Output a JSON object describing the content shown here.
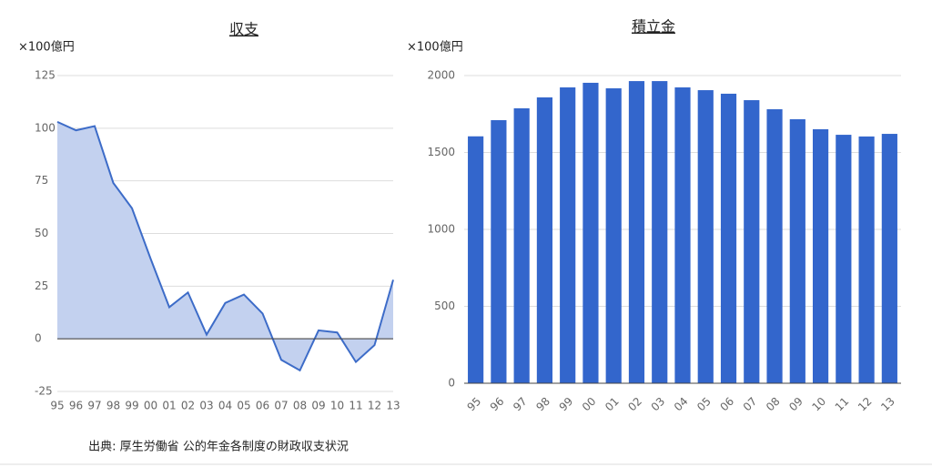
{
  "chart_data": [
    {
      "type": "area",
      "title": "収支",
      "unit_label": "×100億円",
      "categories": [
        "95",
        "96",
        "97",
        "98",
        "99",
        "00",
        "01",
        "02",
        "03",
        "04",
        "05",
        "06",
        "07",
        "08",
        "09",
        "10",
        "11",
        "12",
        "13"
      ],
      "values": [
        103,
        99,
        101,
        74,
        62,
        38,
        15,
        22,
        2,
        17,
        21,
        12,
        -10,
        -15,
        4,
        3,
        -11,
        -3,
        28
      ],
      "color": "#3d6cc8",
      "fill": "#c3d1ef",
      "ylim": [
        -25,
        125
      ],
      "yticks": [
        -25,
        0,
        25,
        50,
        75,
        100,
        125
      ],
      "grid": true
    },
    {
      "type": "bar",
      "title": "積立金",
      "unit_label": "×100億円",
      "categories": [
        "95",
        "96",
        "97",
        "98",
        "99",
        "00",
        "01",
        "02",
        "03",
        "04",
        "05",
        "06",
        "07",
        "08",
        "09",
        "10",
        "11",
        "12",
        "13"
      ],
      "values": [
        1605,
        1710,
        1787,
        1858,
        1923,
        1953,
        1917,
        1964,
        1964,
        1923,
        1905,
        1882,
        1840,
        1781,
        1716,
        1651,
        1615,
        1604,
        1621
      ],
      "color": "#3366cc",
      "ylim": [
        0,
        2000
      ],
      "yticks": [
        0,
        500,
        1000,
        1500,
        2000
      ],
      "grid": true
    }
  ],
  "source": "出典: 厚生労働省 公的年金各制度の財政収支状況"
}
